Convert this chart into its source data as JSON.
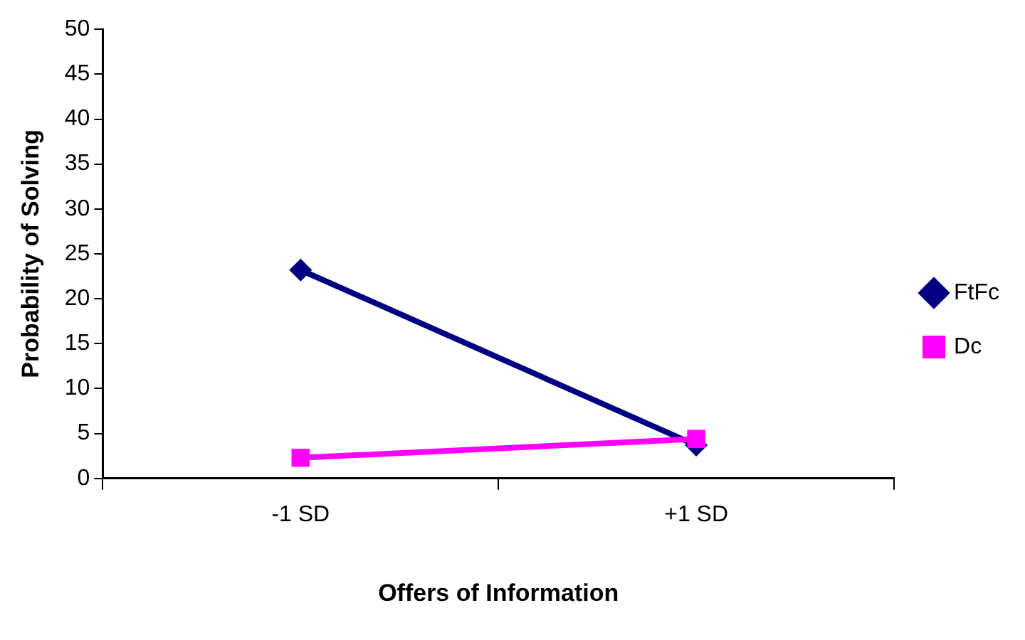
{
  "chart_data": {
    "type": "line",
    "xlabel": "Offers of Information",
    "ylabel": "Probability of Solving",
    "categories": [
      "-1 SD",
      "+1 SD"
    ],
    "series": [
      {
        "name": "FtFc",
        "color": "#000080",
        "values": [
          23.2,
          3.7
        ],
        "marker": "diamond"
      },
      {
        "name": "Dc",
        "color": "#ff00ff",
        "values": [
          2.3,
          4.4
        ],
        "marker": "square"
      }
    ],
    "ylim": [
      0,
      50
    ],
    "yticks": [
      0,
      5,
      10,
      15,
      20,
      25,
      30,
      35,
      40,
      45,
      50
    ],
    "grid": false,
    "legend": "right",
    "line_style": "solid"
  }
}
